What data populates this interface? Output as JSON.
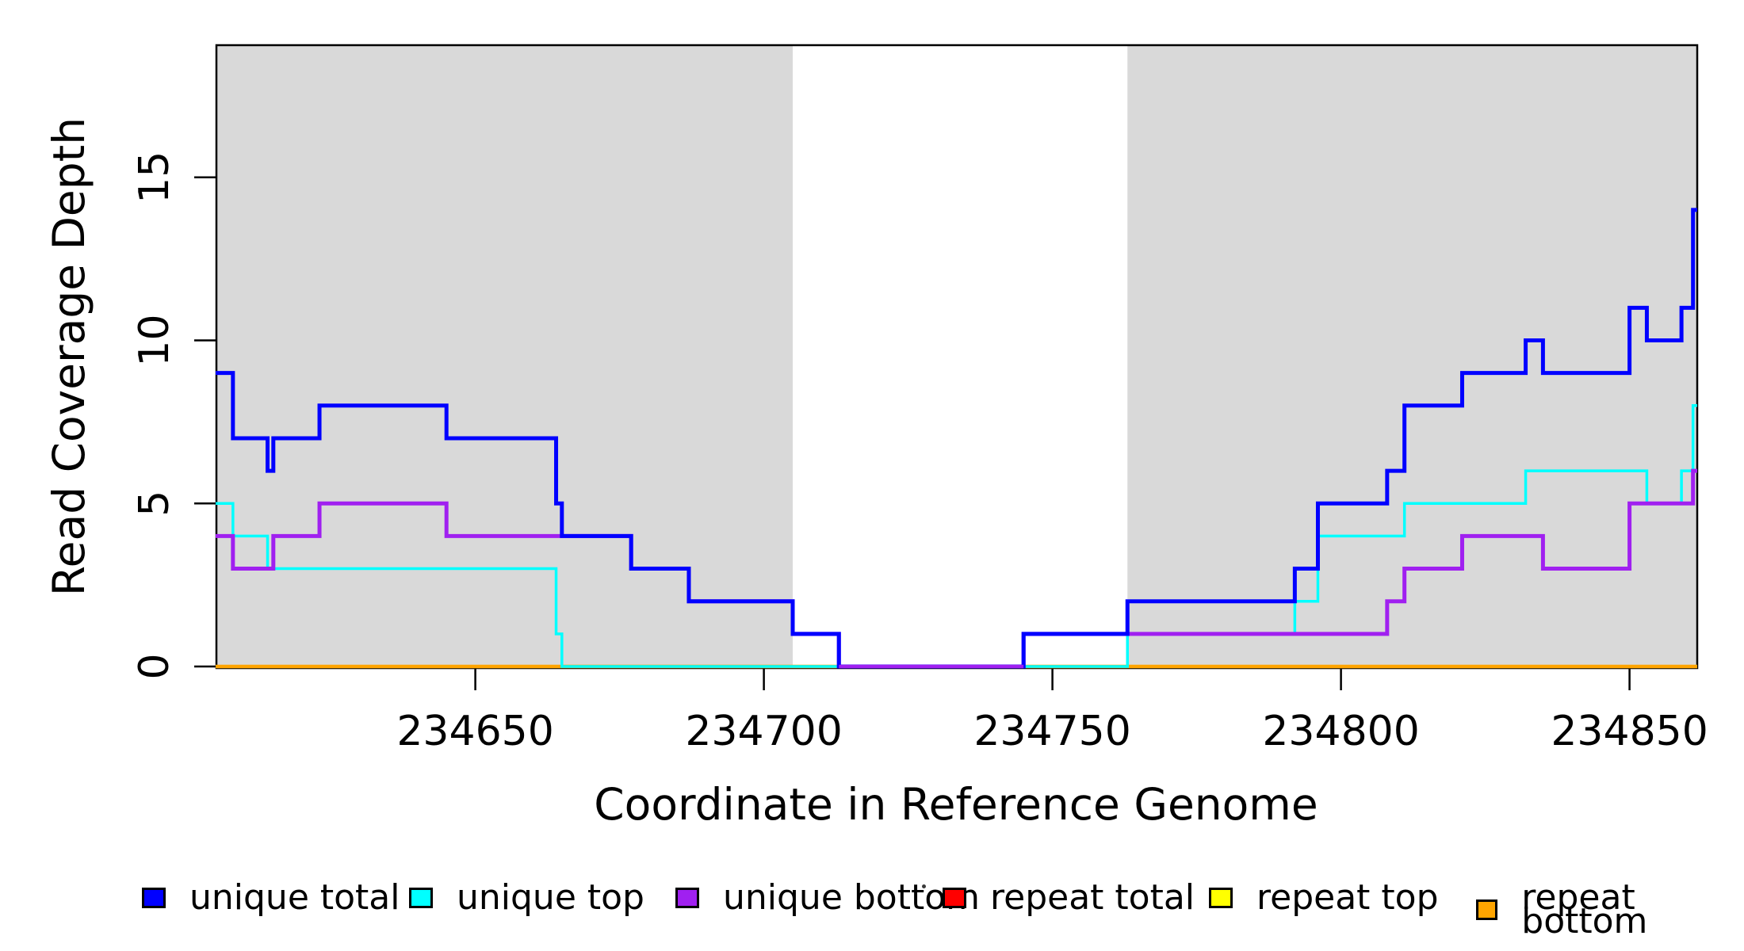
{
  "chart_data": {
    "type": "line",
    "subtype": "step",
    "title": "",
    "xlabel": "Coordinate in Reference Genome",
    "ylabel": "Read Coverage Depth",
    "xlim": [
      234605,
      234861.7
    ],
    "ylim": [
      0,
      19
    ],
    "x_ticks": [
      234650,
      234700,
      234750,
      234800,
      234850
    ],
    "y_ticks": [
      0,
      5,
      10,
      15
    ],
    "grid": false,
    "legend_position": "bottom",
    "plot_background": "#ffffff",
    "shaded_regions": [
      {
        "x0": 234605,
        "x1": 234705,
        "color": "#d9d9d9"
      },
      {
        "x0": 234763,
        "x1": 234861.7,
        "color": "#d9d9d9"
      }
    ],
    "series": [
      {
        "name": "unique total",
        "color": "#0000ff",
        "breakpoints": [
          [
            234605,
            9
          ],
          [
            234608,
            7
          ],
          [
            234614,
            6
          ],
          [
            234615,
            7
          ],
          [
            234623,
            8
          ],
          [
            234645,
            7
          ],
          [
            234664,
            5
          ],
          [
            234665,
            4
          ],
          [
            234677,
            3
          ],
          [
            234687,
            2
          ],
          [
            234705,
            1
          ],
          [
            234713,
            0
          ],
          [
            234745,
            1
          ],
          [
            234763,
            2
          ],
          [
            234792,
            3
          ],
          [
            234796,
            5
          ],
          [
            234808,
            6
          ],
          [
            234811,
            8
          ],
          [
            234821,
            9
          ],
          [
            234832,
            10
          ],
          [
            234835,
            9
          ],
          [
            234850,
            11
          ],
          [
            234853,
            10
          ],
          [
            234859,
            11
          ],
          [
            234861,
            14
          ]
        ]
      },
      {
        "name": "unique top",
        "color": "#00ffff",
        "breakpoints": [
          [
            234605,
            5
          ],
          [
            234608,
            4
          ],
          [
            234614,
            3
          ],
          [
            234664,
            1
          ],
          [
            234665,
            0
          ],
          [
            234763,
            1
          ],
          [
            234792,
            2
          ],
          [
            234796,
            4
          ],
          [
            234811,
            5
          ],
          [
            234832,
            6
          ],
          [
            234853,
            5
          ],
          [
            234859,
            6
          ],
          [
            234861,
            8
          ]
        ]
      },
      {
        "name": "unique bottom",
        "color": "#a020f0",
        "breakpoints": [
          [
            234605,
            4
          ],
          [
            234608,
            3
          ],
          [
            234615,
            4
          ],
          [
            234623,
            5
          ],
          [
            234645,
            4
          ],
          [
            234677,
            3
          ],
          [
            234687,
            2
          ],
          [
            234705,
            1
          ],
          [
            234713,
            0
          ],
          [
            234745,
            1
          ],
          [
            234808,
            2
          ],
          [
            234811,
            3
          ],
          [
            234821,
            4
          ],
          [
            234835,
            3
          ],
          [
            234850,
            5
          ],
          [
            234861,
            6
          ]
        ]
      },
      {
        "name": "repeat total",
        "color": "#ff0000",
        "breakpoints": [
          [
            234605,
            0
          ]
        ]
      },
      {
        "name": "repeat top",
        "color": "#ffff00",
        "breakpoints": [
          [
            234605,
            0
          ]
        ]
      },
      {
        "name": "repeat bottom",
        "color": "#ffa500",
        "breakpoints": [
          [
            234605,
            0
          ]
        ]
      }
    ]
  },
  "legend": {
    "items": [
      {
        "label": "unique total",
        "color": "#0000ff"
      },
      {
        "label": "unique top",
        "color": "#00ffff"
      },
      {
        "label": "unique bottom",
        "color": "#a020f0"
      },
      {
        "label": "repeat total",
        "color": "#ff0000"
      },
      {
        "label": "repeat top",
        "color": "#ffff00"
      },
      {
        "label": "repeat bottom",
        "color": "#ffa500"
      }
    ]
  }
}
